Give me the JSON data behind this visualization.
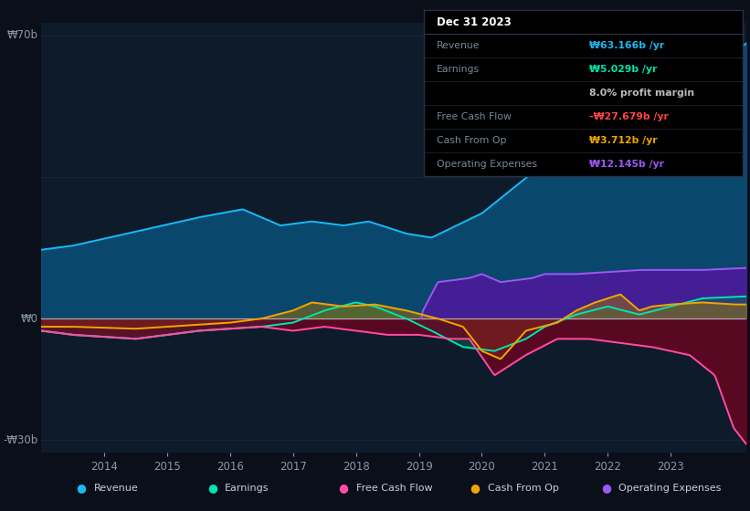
{
  "bg_color": "#0b0f1a",
  "plot_bg_color": "#0d1b2a",
  "ylabel_top": "₩70b",
  "ylabel_zero": "₩0",
  "ylabel_bottom": "-₩30b",
  "x_ticks": [
    "2014",
    "2015",
    "2016",
    "2017",
    "2018",
    "2019",
    "2020",
    "2021",
    "2022",
    "2023"
  ],
  "legend": [
    {
      "label": "Revenue",
      "color": "#1ab8f5"
    },
    {
      "label": "Earnings",
      "color": "#00e5b0"
    },
    {
      "label": "Free Cash Flow",
      "color": "#ff4da6"
    },
    {
      "label": "Cash From Op",
      "color": "#f0a500"
    },
    {
      "label": "Operating Expenses",
      "color": "#9b59f5"
    }
  ],
  "info_title": "Dec 31 2023",
  "info_rows": [
    {
      "label": "Revenue",
      "value": "₩63.166b /yr",
      "vcolor": "#1ab8f5",
      "gray": false
    },
    {
      "label": "Earnings",
      "value": "₩5.029b /yr",
      "vcolor": "#00e5b0",
      "gray": false
    },
    {
      "label": "",
      "value": "8.0% profit margin",
      "vcolor": "#cccccc",
      "gray": false
    },
    {
      "label": "Free Cash Flow",
      "value": "-₩27.679b /yr",
      "vcolor": "#ff4444",
      "gray": true
    },
    {
      "label": "Cash From Op",
      "value": "₩3.712b /yr",
      "vcolor": "#f0a500",
      "gray": true
    },
    {
      "label": "Operating Expenses",
      "value": "₩12.145b /yr",
      "vcolor": "#9b59f5",
      "gray": true
    }
  ]
}
